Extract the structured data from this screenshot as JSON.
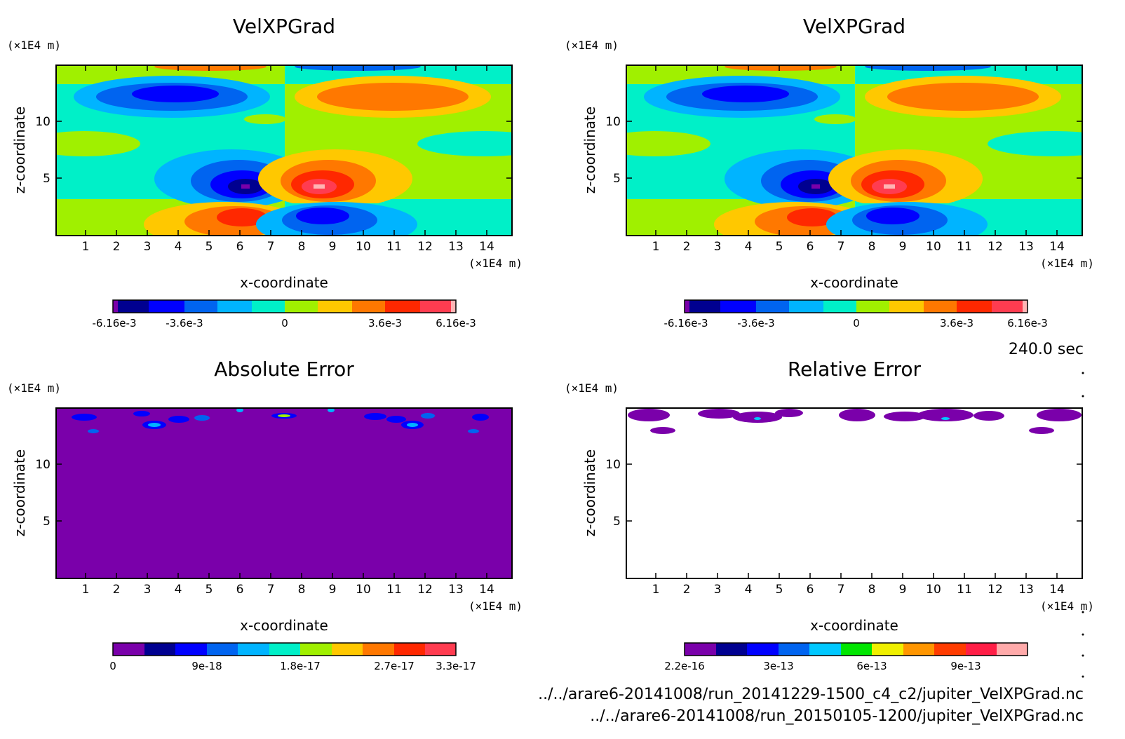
{
  "chart_data": [
    {
      "type": "heatmap",
      "title": "VelXPGrad",
      "xlabel": "x-coordinate",
      "ylabel": "z-coordinate",
      "x_unit": "(×1E4 m)",
      "y_unit": "(×1E4 m)",
      "xlim": [
        0,
        14.8
      ],
      "ylim": [
        0,
        14.8
      ],
      "x_ticks": [
        "1",
        "2",
        "3",
        "4",
        "5",
        "6",
        "7",
        "8",
        "9",
        "10",
        "11",
        "12",
        "13",
        "14"
      ],
      "y_ticks": [
        "5",
        "10"
      ],
      "colorbar_labels": [
        "-6.16e-3",
        "-3.6e-3",
        "0",
        "3.6e-3",
        "6.16e-3"
      ],
      "colorbar_range": [
        -0.00616,
        0.00616
      ],
      "colorscale": [
        "#7a00aa",
        "#000090",
        "#0000ff",
        "#0064f0",
        "#00b4ff",
        "#00f0c8",
        "#a0f000",
        "#ffc800",
        "#ff7800",
        "#ff2800",
        "#ff3c50",
        "#ffb4b4"
      ],
      "features": [
        {
          "x": 6.4,
          "z": 4.2,
          "value": -0.00616
        },
        {
          "x": 8.6,
          "z": 4.2,
          "value": 0.00616
        },
        {
          "x": 6.4,
          "z": 1.7,
          "value": 0.0045
        },
        {
          "x": 8.6,
          "z": 1.7,
          "value": -0.0045
        },
        {
          "x": 5.0,
          "z": 12.0,
          "value": -0.0028
        },
        {
          "x": 10.0,
          "z": 12.0,
          "value": 0.0028
        }
      ]
    },
    {
      "type": "heatmap",
      "title": "VelXPGrad",
      "xlabel": "x-coordinate",
      "ylabel": "z-coordinate",
      "x_unit": "(×1E4 m)",
      "y_unit": "(×1E4 m)",
      "xlim": [
        0,
        14.8
      ],
      "ylim": [
        0,
        14.8
      ],
      "x_ticks": [
        "1",
        "2",
        "3",
        "4",
        "5",
        "6",
        "7",
        "8",
        "9",
        "10",
        "11",
        "12",
        "13",
        "14"
      ],
      "y_ticks": [
        "5",
        "10"
      ],
      "colorbar_labels": [
        "-6.16e-3",
        "-3.6e-3",
        "0",
        "3.6e-3",
        "6.16e-3"
      ],
      "colorbar_range": [
        -0.00616,
        0.00616
      ],
      "colorscale": [
        "#7a00aa",
        "#000090",
        "#0000ff",
        "#0064f0",
        "#00b4ff",
        "#00f0c8",
        "#a0f000",
        "#ffc800",
        "#ff7800",
        "#ff2800",
        "#ff3c50",
        "#ffb4b4"
      ],
      "features": [
        {
          "x": 6.4,
          "z": 4.2,
          "value": -0.00616
        },
        {
          "x": 8.6,
          "z": 4.2,
          "value": 0.00616
        },
        {
          "x": 6.4,
          "z": 1.7,
          "value": 0.0045
        },
        {
          "x": 8.6,
          "z": 1.7,
          "value": -0.0045
        },
        {
          "x": 5.0,
          "z": 12.0,
          "value": -0.0028
        },
        {
          "x": 10.0,
          "z": 12.0,
          "value": 0.0028
        }
      ]
    },
    {
      "type": "heatmap",
      "title": "Absolute Error",
      "xlabel": "x-coordinate",
      "ylabel": "z-coordinate",
      "x_unit": "(×1E4 m)",
      "y_unit": "(×1E4 m)",
      "xlim": [
        0,
        14.8
      ],
      "ylim": [
        0,
        14.8
      ],
      "x_ticks": [
        "1",
        "2",
        "3",
        "4",
        "5",
        "6",
        "7",
        "8",
        "9",
        "10",
        "11",
        "12",
        "13",
        "14"
      ],
      "y_ticks": [
        "5",
        "10"
      ],
      "colorbar_labels": [
        "0",
        "9e-18",
        "1.8e-17",
        "2.7e-17",
        "3.3e-17"
      ],
      "colorbar_range": [
        0,
        3.3e-17
      ],
      "colorscale": [
        "#7a00aa",
        "#000090",
        "#0000ff",
        "#0064f0",
        "#00b4ff",
        "#00f0c8",
        "#a0f000",
        "#ffc800",
        "#ff7800",
        "#ff2800",
        "#ff3c50"
      ],
      "background_value": 0,
      "features": [
        {
          "x": 3.1,
          "z": 13.8,
          "value": 9e-18
        },
        {
          "x": 3.9,
          "z": 14.0,
          "value": 9e-18
        },
        {
          "x": 11.1,
          "z": 13.9,
          "value": 9e-18
        },
        {
          "x": 11.7,
          "z": 13.8,
          "value": 9e-18
        },
        {
          "x": 7.4,
          "z": 14.4,
          "value": 1.8e-17
        },
        {
          "x": 1.0,
          "z": 14.3,
          "value": 4e-18
        },
        {
          "x": 14.1,
          "z": 14.3,
          "value": 4e-18
        }
      ]
    },
    {
      "type": "heatmap",
      "title": "Relative Error",
      "xlabel": "x-coordinate",
      "ylabel": "z-coordinate",
      "x_unit": "(×1E4 m)",
      "y_unit": "(×1E4 m)",
      "xlim": [
        0,
        14.8
      ],
      "ylim": [
        0,
        14.8
      ],
      "x_ticks": [
        "1",
        "2",
        "3",
        "4",
        "5",
        "6",
        "7",
        "8",
        "9",
        "10",
        "11",
        "12",
        "13",
        "14"
      ],
      "y_ticks": [
        "5",
        "10"
      ],
      "colorbar_labels": [
        "2.2e-16",
        "3e-13",
        "6e-13",
        "9e-13"
      ],
      "colorbar_range": [
        2.2e-16,
        1.1e-12
      ],
      "colorscale": [
        "#7a00aa",
        "#000090",
        "#0000ff",
        "#0064f0",
        "#00c8ff",
        "#00e600",
        "#f0f000",
        "#ff9600",
        "#ff3c00",
        "#ff1e46",
        "#ffaaaa"
      ],
      "features": [
        {
          "x": 0.8,
          "z": 14.3,
          "value": 2.2e-16
        },
        {
          "x": 4.8,
          "z": 14.2,
          "value": 2.2e-16
        },
        {
          "x": 7.5,
          "z": 14.0,
          "value": 2.2e-16
        },
        {
          "x": 10.0,
          "z": 14.1,
          "value": 2.2e-16
        },
        {
          "x": 14.0,
          "z": 14.2,
          "value": 2.2e-16
        }
      ]
    }
  ],
  "time_label": "240.0 sec",
  "file_paths": [
    "../../arare6-20141008/run_20141229-1500_c4_c2/jupiter_VelXPGrad.nc",
    "../../arare6-20141008/run_20150105-1200/jupiter_VelXPGrad.nc"
  ]
}
